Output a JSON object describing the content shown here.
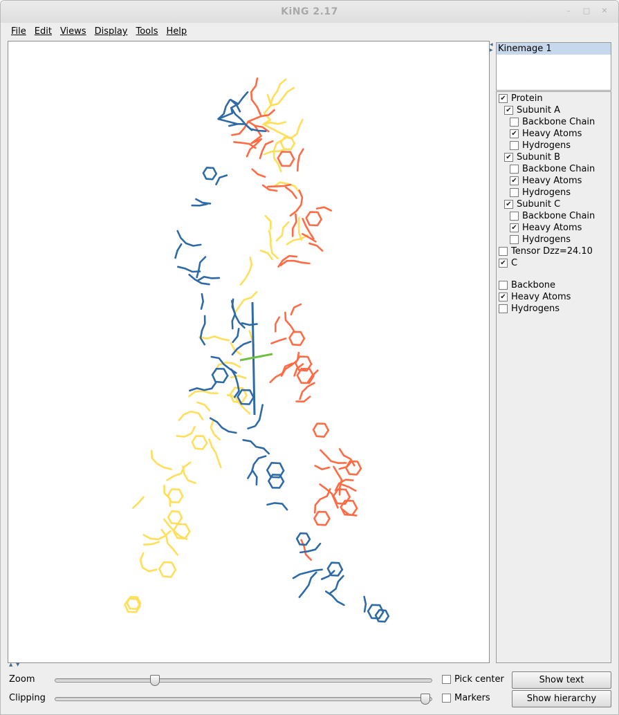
{
  "window": {
    "title": "KiNG 2.17"
  },
  "menu": [
    "File",
    "Edit",
    "Views",
    "Display",
    "Tools",
    "Help"
  ],
  "kinemages": [
    "Kinemage 1"
  ],
  "tree": [
    {
      "label": "Protein",
      "checked": true,
      "level": 0
    },
    {
      "label": "Subunit A",
      "checked": true,
      "level": 1
    },
    {
      "label": "Backbone Chain",
      "checked": false,
      "level": 2
    },
    {
      "label": "Heavy Atoms",
      "checked": true,
      "level": 2
    },
    {
      "label": "Hydrogens",
      "checked": false,
      "level": 2
    },
    {
      "label": "Subunit B",
      "checked": true,
      "level": 1
    },
    {
      "label": "Backbone Chain",
      "checked": false,
      "level": 2
    },
    {
      "label": "Heavy Atoms",
      "checked": true,
      "level": 2
    },
    {
      "label": "Hydrogens",
      "checked": false,
      "level": 2
    },
    {
      "label": "Subunit C",
      "checked": true,
      "level": 1
    },
    {
      "label": "Backbone Chain",
      "checked": false,
      "level": 2
    },
    {
      "label": "Heavy Atoms",
      "checked": true,
      "level": 2
    },
    {
      "label": "Hydrogens",
      "checked": false,
      "level": 2
    },
    {
      "label": "Tensor Dzz=24.10",
      "checked": false,
      "level": 0
    },
    {
      "label": "C",
      "checked": true,
      "level": 0
    }
  ],
  "masters": [
    {
      "label": "Backbone",
      "checked": false
    },
    {
      "label": "Heavy Atoms",
      "checked": true
    },
    {
      "label": "Hydrogens",
      "checked": false
    }
  ],
  "controls": {
    "zoom_label": "Zoom",
    "clipping_label": "Clipping",
    "zoom_value": 0.26,
    "clipping_value": 1.0,
    "pick_center_label": "Pick center",
    "pick_center_checked": false,
    "markers_label": "Markers",
    "markers_checked": false,
    "show_text_label": "Show text",
    "show_hierarchy_label": "Show hierarchy"
  },
  "colors": {
    "subunit_a": "#ff6b45",
    "subunit_b": "#2e6aa6",
    "subunit_c": "#ffdf5a",
    "tensor_axis": "#6fbf40"
  }
}
